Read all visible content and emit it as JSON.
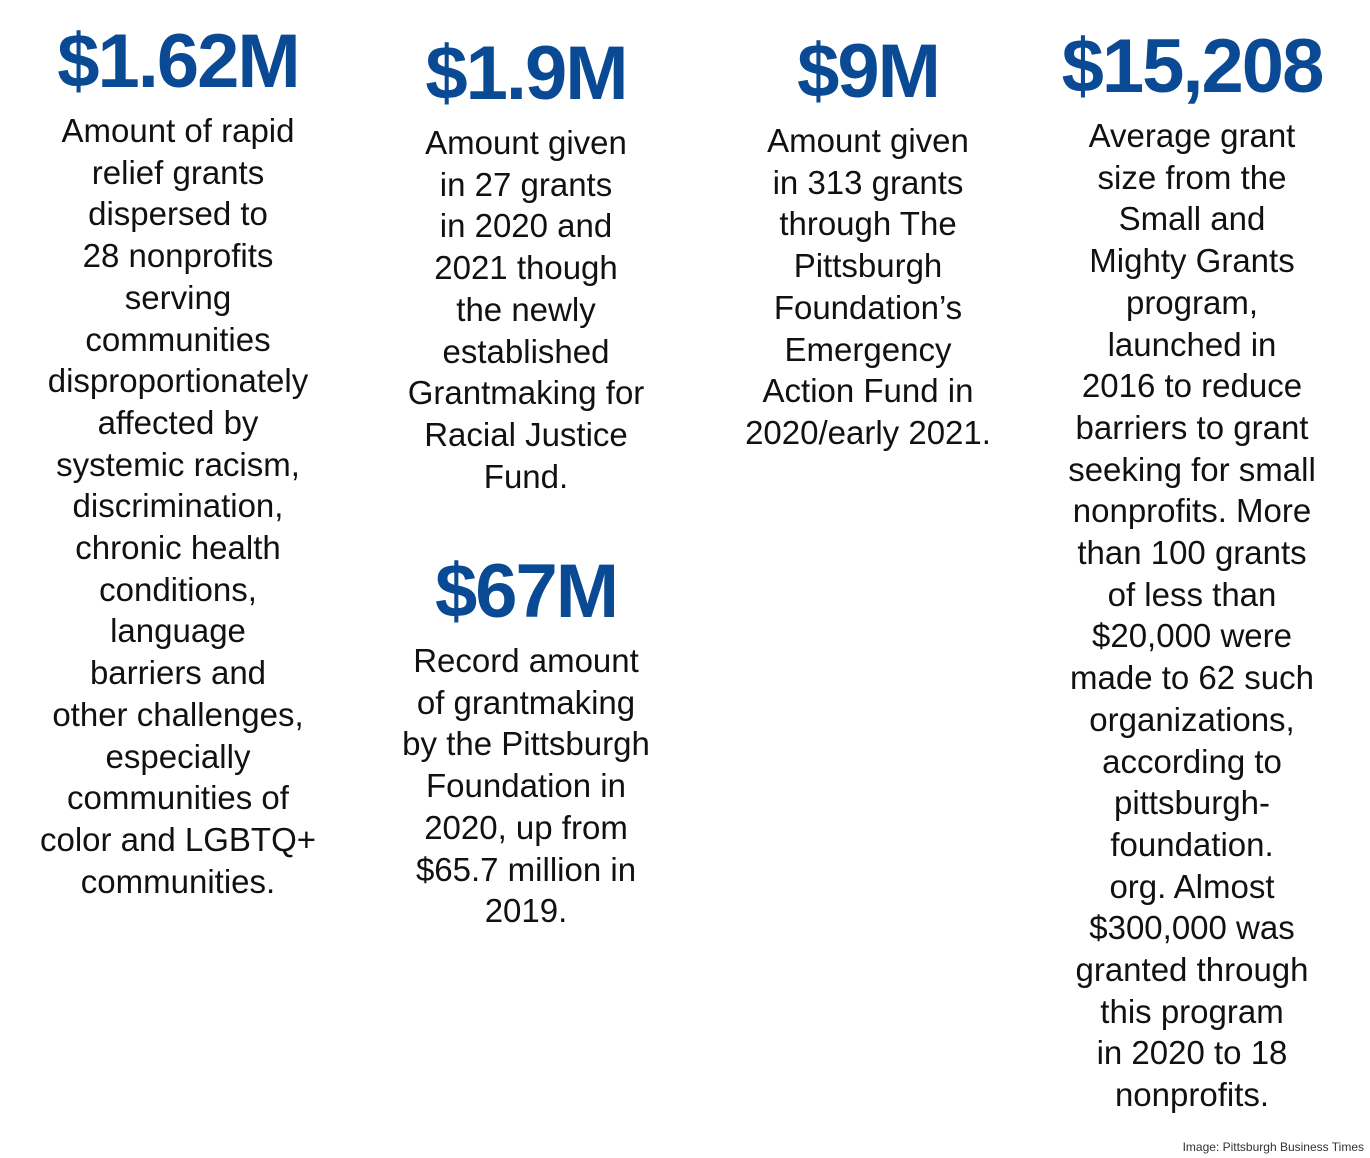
{
  "accent_color": "#0a4a94",
  "stats": [
    {
      "value": "$1.62M",
      "description": "Amount of rapid\nrelief grants\ndispersed to\n28 nonprofits\nserving\ncommunities\ndisproportionately\naffected by\nsystemic racism,\ndiscrimination,\nchronic health\nconditions,\nlanguage\nbarriers and\nother challenges,\nespecially\ncommunities of\ncolor and LGBTQ+\ncommunities."
    },
    {
      "value": "$1.9M",
      "description": "Amount given\nin 27 grants\nin 2020 and\n2021 though\nthe newly\nestablished\nGrantmaking for\nRacial Justice\nFund."
    },
    {
      "value": "$67M",
      "description": "Record amount\nof grantmaking\nby the Pittsburgh\nFoundation in\n2020, up from\n$65.7 million in\n2019."
    },
    {
      "value": "$9M",
      "description": "Amount given\nin 313 grants\nthrough The\nPittsburgh\nFoundation’s\nEmergency\nAction Fund in\n2020/early 2021."
    },
    {
      "value": "$15,208",
      "description": "Average grant\nsize from the\nSmall and\nMighty Grants\nprogram,\nlaunched in\n2016 to reduce\nbarriers to grant\nseeking for small\nnonprofits. More\nthan 100 grants\nof less than\n$20,000 were\nmade to 62 such\norganizations,\naccording to\npittsburgh-\nfoundation.\norg. Almost\n$300,000 was\ngranted through\nthis program\nin 2020 to 18\nnonprofits."
    }
  ],
  "credit": "Image: Pittsburgh Business Times"
}
